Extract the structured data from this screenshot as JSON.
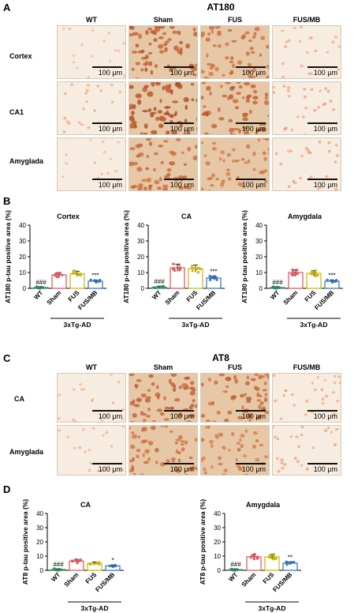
{
  "panelA": {
    "letter": "A",
    "title": "AT180",
    "columns": [
      "WT",
      "Sham",
      "FUS",
      "FUS/MB"
    ],
    "rows": [
      "Cortex",
      "CA1",
      "Amyglada"
    ],
    "scale": "100 μm"
  },
  "panelC": {
    "letter": "C",
    "title": "AT8",
    "columns": [
      "WT",
      "Sham",
      "FUS",
      "FUS/MB"
    ],
    "rows": [
      "CA",
      "Amyglada"
    ],
    "scale": "100 μm"
  },
  "panelB": {
    "letter": "B"
  },
  "panelD": {
    "letter": "D"
  },
  "colors": {
    "wt": "#2e8b57",
    "sham": "#e0505a",
    "fus": "#c8b400",
    "fusmb": "#2f6fc0",
    "stain_dark": "#b06a2e",
    "stain_light": "#f3e6d4"
  },
  "chart_data": [
    {
      "type": "bar",
      "panel": "B",
      "title": "Cortex",
      "ylabel": "AT180 p-tau positive area (%)",
      "ylim": [
        0,
        40
      ],
      "yticks": [
        "0",
        "10",
        "20",
        "30",
        "40"
      ],
      "categories": [
        "WT",
        "Sham",
        "FUS",
        "FUS/MB"
      ],
      "values": [
        0.5,
        8.5,
        9.2,
        4.5
      ],
      "annotations": [
        "###",
        "",
        "",
        "***"
      ],
      "group_label": "3xTg-AD"
    },
    {
      "type": "bar",
      "panel": "B",
      "title": "CA",
      "ylabel": "AT180 p-tau positive area (%)",
      "ylim": [
        0,
        40
      ],
      "yticks": [
        "0",
        "10",
        "20",
        "30",
        "40"
      ],
      "categories": [
        "WT",
        "Sham",
        "FUS",
        "FUS/MB"
      ],
      "values": [
        0.8,
        13,
        12.5,
        6.5
      ],
      "annotations": [
        "###",
        "",
        "",
        "***"
      ],
      "group_label": "3xTg-AD"
    },
    {
      "type": "bar",
      "panel": "B",
      "title": "Amygdala",
      "ylabel": "AT180 p-tau positive area (%)",
      "ylim": [
        0,
        40
      ],
      "yticks": [
        "0",
        "10",
        "20",
        "30",
        "40"
      ],
      "categories": [
        "WT",
        "Sham",
        "FUS",
        "FUS/MB"
      ],
      "values": [
        0.5,
        10,
        9.5,
        4.5
      ],
      "annotations": [
        "###",
        "",
        "",
        "***"
      ],
      "group_label": "3xTg-AD"
    },
    {
      "type": "bar",
      "panel": "D",
      "title": "CA",
      "ylabel": "AT8 p-tau positive area (%)",
      "ylim": [
        0,
        40
      ],
      "yticks": [
        "0",
        "10",
        "20",
        "30",
        "40"
      ],
      "categories": [
        "WT",
        "Sham",
        "FUS",
        "FUS/MB"
      ],
      "values": [
        0.6,
        6.5,
        5,
        3.2
      ],
      "annotations": [
        "###",
        "",
        "",
        "*"
      ],
      "group_label": "3xTg-AD"
    },
    {
      "type": "bar",
      "panel": "D",
      "title": "Amygdala",
      "ylabel": "AT8 p-tau positive area (%)",
      "ylim": [
        0,
        40
      ],
      "yticks": [
        "0",
        "10",
        "20",
        "30",
        "40"
      ],
      "categories": [
        "WT",
        "Sham",
        "FUS",
        "FUS/MB"
      ],
      "values": [
        0.5,
        9.5,
        9.5,
        5
      ],
      "annotations": [
        "###",
        "",
        "",
        "**"
      ],
      "group_label": "3xTg-AD"
    }
  ]
}
